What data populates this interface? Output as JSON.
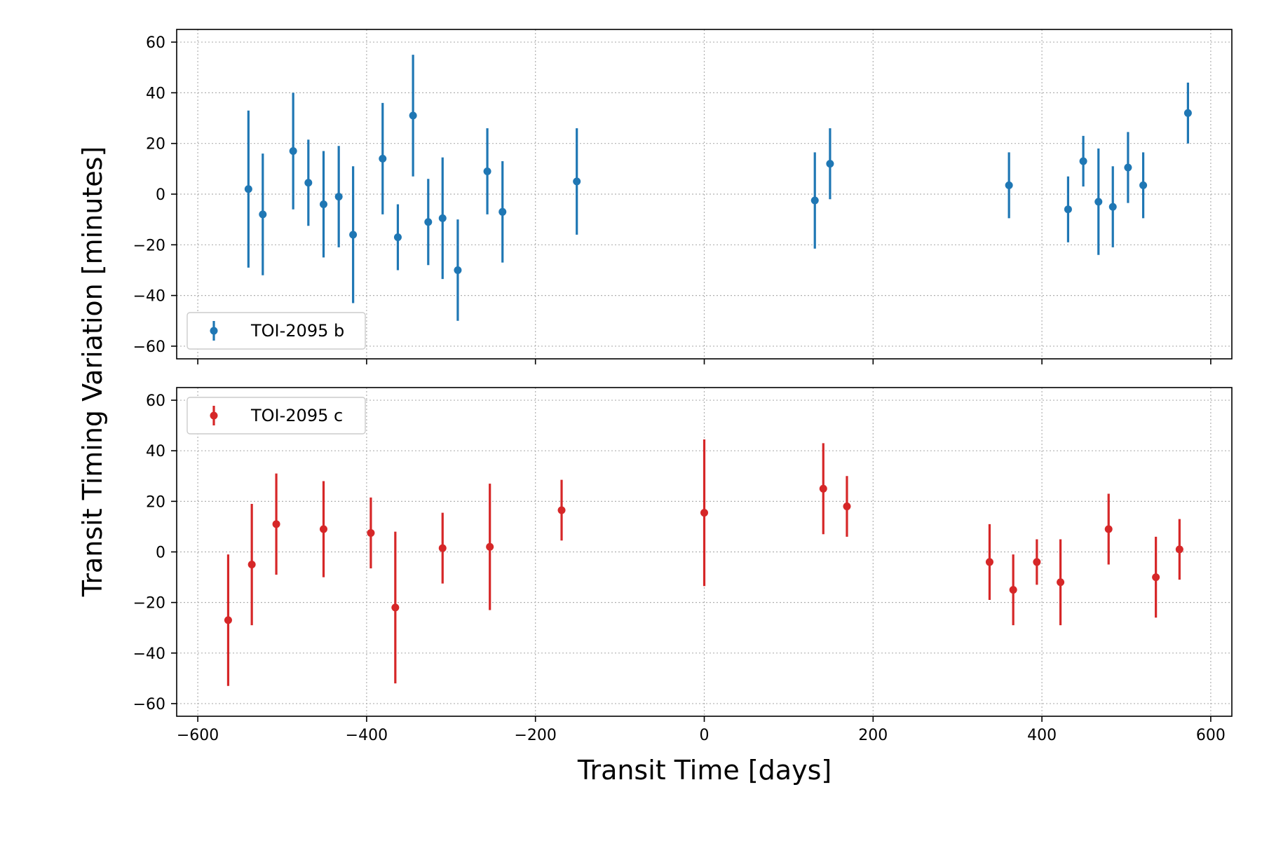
{
  "chart_data": {
    "type": "scatter",
    "xlabel": "Transit Time [days]",
    "ylabel": "Transit Timing Variation [minutes]",
    "xlim": [
      -625,
      625
    ],
    "ylim": [
      -65,
      65
    ],
    "xticks": [
      -600,
      -400,
      -200,
      0,
      200,
      400,
      600
    ],
    "yticks": [
      60,
      40,
      20,
      0,
      -20,
      -40,
      -60
    ],
    "grid": true,
    "shared_x": true,
    "panels": [
      {
        "series_name": "TOI-2095 b",
        "color": "#1f77b4",
        "legend_position": "lower-left",
        "points": [
          {
            "x": -540,
            "y": 2,
            "err": 31
          },
          {
            "x": -523,
            "y": -8,
            "err": 24
          },
          {
            "x": -487,
            "y": 17,
            "err": 23
          },
          {
            "x": -469,
            "y": 4.5,
            "err": 17
          },
          {
            "x": -451,
            "y": -4,
            "err": 21
          },
          {
            "x": -433,
            "y": -1,
            "err": 20
          },
          {
            "x": -416,
            "y": -16,
            "err": 27
          },
          {
            "x": -381,
            "y": 14,
            "err": 22
          },
          {
            "x": -363,
            "y": -17,
            "err": 13
          },
          {
            "x": -345,
            "y": 31,
            "err": 24
          },
          {
            "x": -327,
            "y": -11,
            "err": 17
          },
          {
            "x": -310,
            "y": -9.5,
            "err": 24
          },
          {
            "x": -292,
            "y": -30,
            "err": 20
          },
          {
            "x": -257,
            "y": 9,
            "err": 17
          },
          {
            "x": -239,
            "y": -7,
            "err": 20
          },
          {
            "x": -151,
            "y": 5,
            "err": 21
          },
          {
            "x": 131,
            "y": -2.5,
            "err": 19
          },
          {
            "x": 149,
            "y": 12,
            "err": 14
          },
          {
            "x": 361,
            "y": 3.5,
            "err": 13
          },
          {
            "x": 431,
            "y": -6,
            "err": 13
          },
          {
            "x": 449,
            "y": 13,
            "err": 10
          },
          {
            "x": 467,
            "y": -3,
            "err": 21
          },
          {
            "x": 484,
            "y": -5,
            "err": 16
          },
          {
            "x": 502,
            "y": 10.5,
            "err": 14
          },
          {
            "x": 520,
            "y": 3.5,
            "err": 13
          },
          {
            "x": 573,
            "y": 32,
            "err": 12
          }
        ]
      },
      {
        "series_name": "TOI-2095 c",
        "color": "#d62728",
        "legend_position": "upper-left",
        "points": [
          {
            "x": -564,
            "y": -27,
            "err": 26
          },
          {
            "x": -536,
            "y": -5,
            "err": 24
          },
          {
            "x": -507,
            "y": 11,
            "err": 20
          },
          {
            "x": -451,
            "y": 9,
            "err": 19
          },
          {
            "x": -395,
            "y": 7.5,
            "err": 14
          },
          {
            "x": -366,
            "y": -22,
            "err": 30
          },
          {
            "x": -310,
            "y": 1.5,
            "err": 14
          },
          {
            "x": -254,
            "y": 2,
            "err": 25
          },
          {
            "x": -169,
            "y": 16.5,
            "err": 12
          },
          {
            "x": 0,
            "y": 15.5,
            "err": 29
          },
          {
            "x": 141,
            "y": 25,
            "err": 18
          },
          {
            "x": 169,
            "y": 18,
            "err": 12
          },
          {
            "x": 338,
            "y": -4,
            "err": 15
          },
          {
            "x": 366,
            "y": -15,
            "err": 14
          },
          {
            "x": 394,
            "y": -4,
            "err": 9
          },
          {
            "x": 422,
            "y": -12,
            "err": 17
          },
          {
            "x": 479,
            "y": 9,
            "err": 14
          },
          {
            "x": 535,
            "y": -10,
            "err": 16
          },
          {
            "x": 563,
            "y": 1,
            "err": 12
          }
        ]
      }
    ]
  }
}
